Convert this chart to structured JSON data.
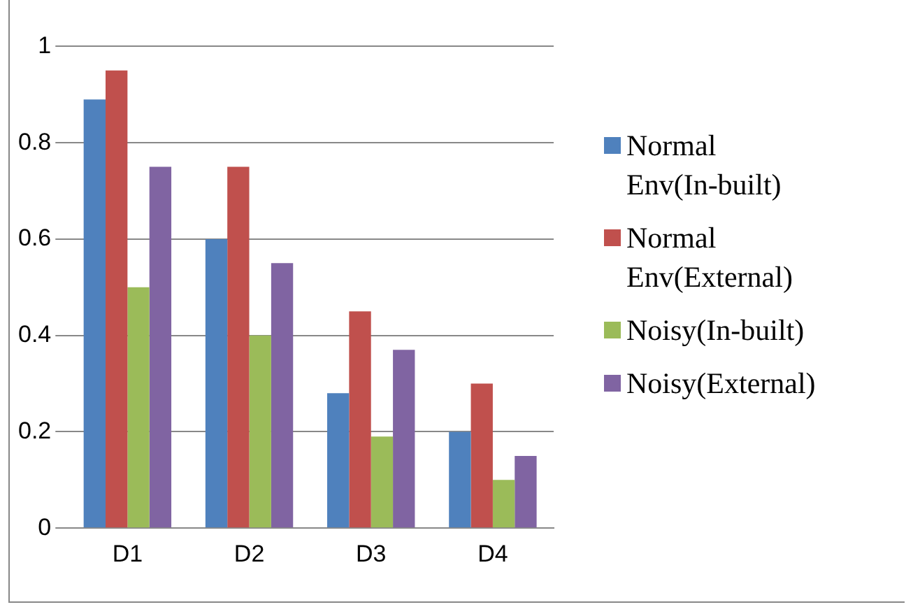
{
  "chart_data": {
    "type": "bar",
    "categories": [
      "D1",
      "D2",
      "D3",
      "D4"
    ],
    "series": [
      {
        "name": "Normal Env(In-built)",
        "color": "#4f81bd",
        "values": [
          0.89,
          0.6,
          0.28,
          0.2
        ]
      },
      {
        "name": "Normal Env(External)",
        "color": "#c0504d",
        "values": [
          0.95,
          0.75,
          0.45,
          0.3
        ]
      },
      {
        "name": "Noisy(In-built)",
        "color": "#9bbb59",
        "values": [
          0.5,
          0.4,
          0.19,
          0.1
        ]
      },
      {
        "name": "Noisy(External)",
        "color": "#8064a2",
        "values": [
          0.75,
          0.55,
          0.37,
          0.15
        ]
      }
    ],
    "ylim": [
      0,
      1
    ],
    "yticks": [
      0,
      0.2,
      0.4,
      0.6,
      0.8,
      1
    ],
    "grid": "y",
    "legend": "right"
  }
}
